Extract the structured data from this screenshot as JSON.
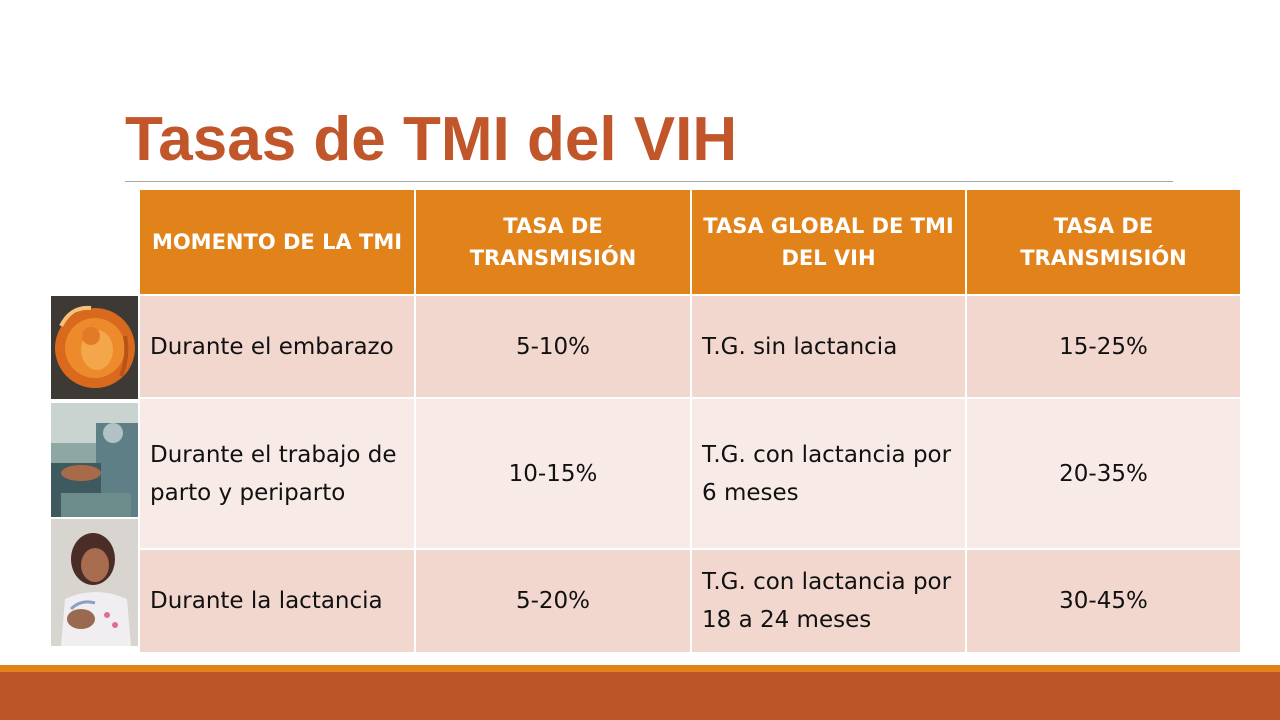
{
  "slide": {
    "title": "Tasas de TMI del VIH"
  },
  "table": {
    "headers": [
      "MOMENTO DE LA TMI",
      "TASA DE TRANSMISIÓN",
      "TASA GLOBAL DE TMI DEL VIH",
      "TASA DE TRANSMISIÓN"
    ],
    "rows": [
      [
        "Durante el embarazo",
        "5-10%",
        "T.G. sin lactancia",
        "15-25%"
      ],
      [
        "Durante el trabajo de parto y periparto",
        "10-15%",
        "T.G. con lactancia por 6 meses",
        "20-35%"
      ],
      [
        "Durante la lactancia",
        "5-20%",
        "T.G. con lactancia por 18 a 24 meses",
        "30-45%"
      ]
    ]
  },
  "colors": {
    "title": "#c0562a",
    "header_bg": "#e2821a",
    "row_dark": "#f2d7cf",
    "row_light": "#f8ebe7",
    "footer_bar": "#bb5528"
  },
  "photos": [
    "fetus-photo",
    "delivery-room-photo",
    "breastfeeding-mother-photo"
  ]
}
